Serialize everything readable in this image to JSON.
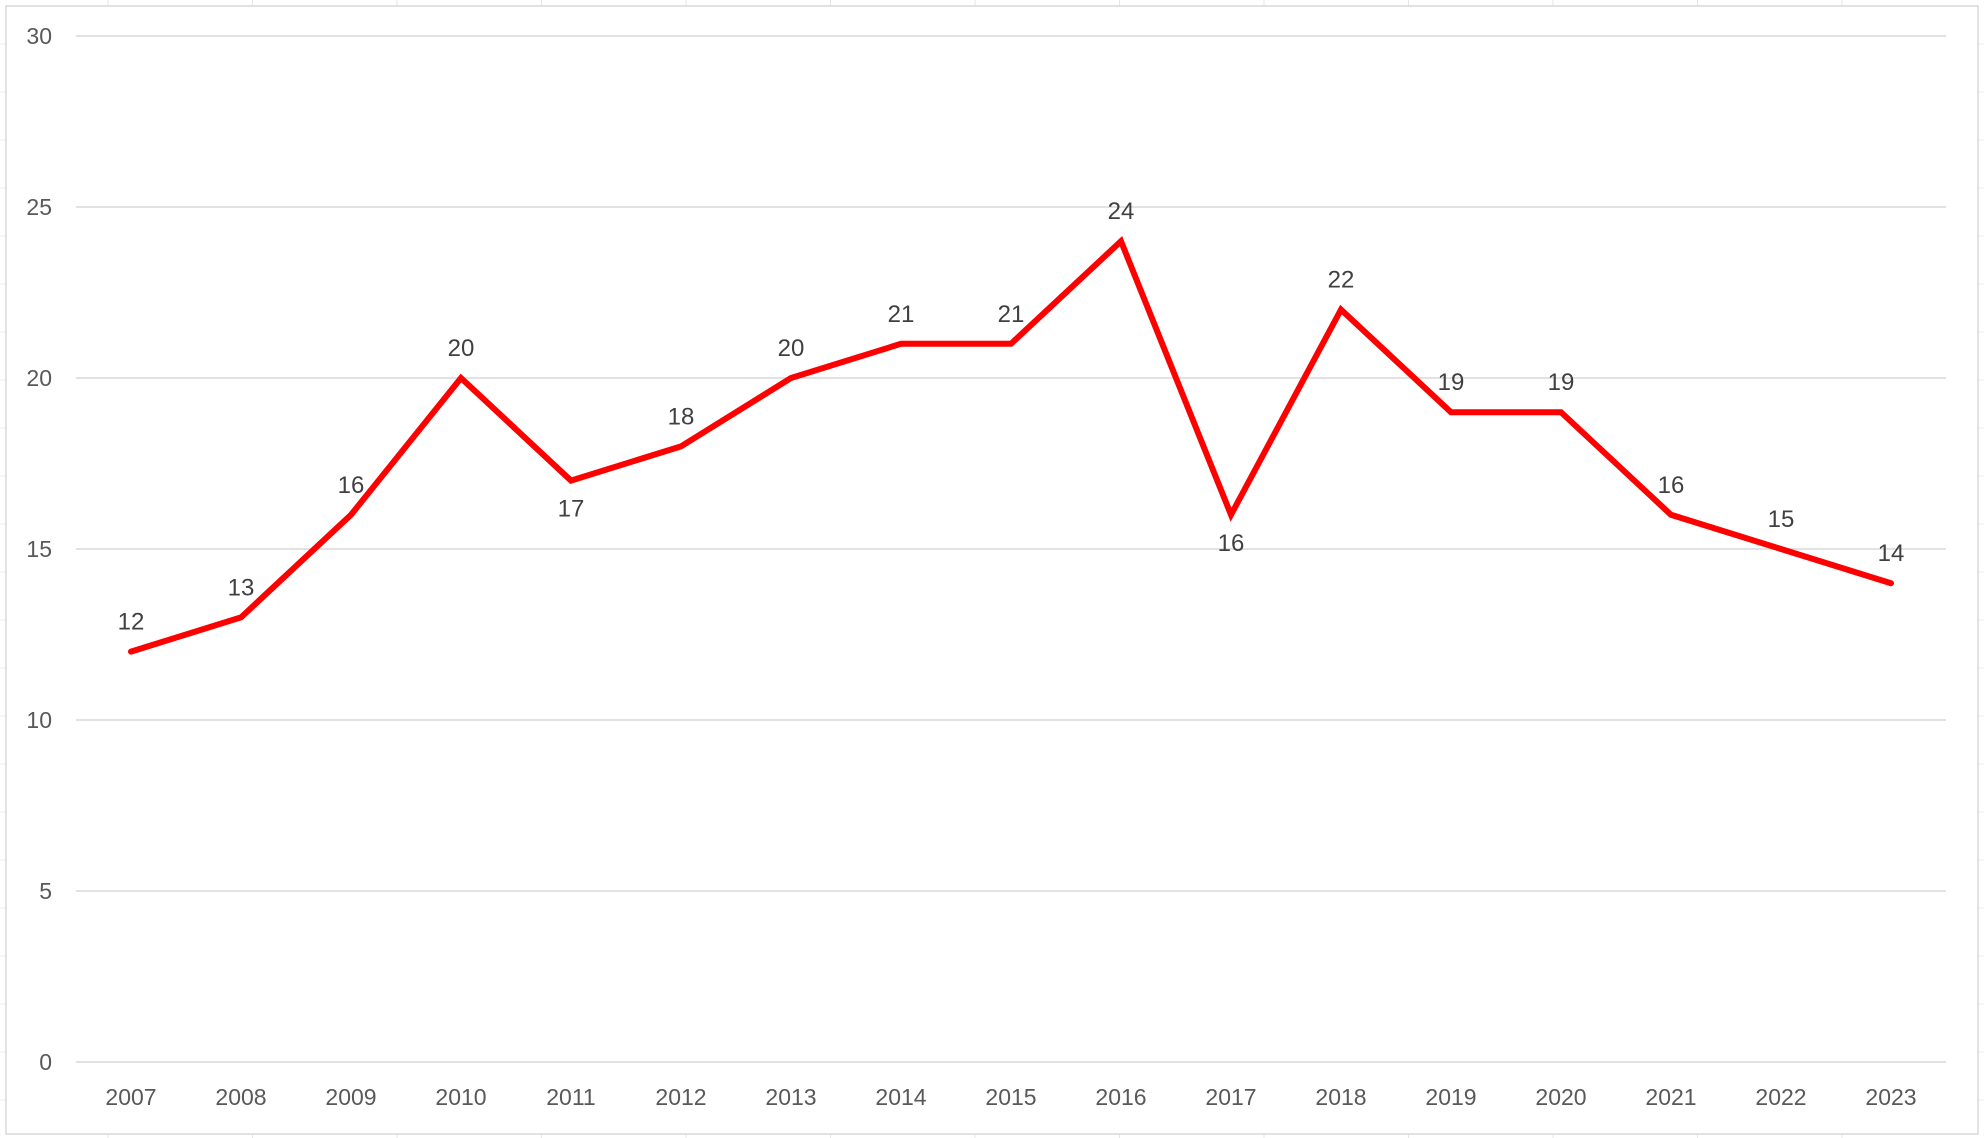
{
  "chart_data": {
    "type": "line",
    "title": "",
    "xlabel": "",
    "ylabel": "",
    "categories": [
      "2007",
      "2008",
      "2009",
      "2010",
      "2011",
      "2012",
      "2013",
      "2014",
      "2015",
      "2016",
      "2017",
      "2018",
      "2019",
      "2020",
      "2021",
      "2022",
      "2023"
    ],
    "series": [
      {
        "values": [
          12,
          13,
          16,
          20,
          17,
          18,
          20,
          21,
          21,
          24,
          16,
          22,
          19,
          19,
          16,
          15,
          14
        ],
        "color": "#ff0000"
      }
    ],
    "ylim": [
      0,
      30
    ],
    "yticks": [
      0,
      5,
      10,
      15,
      20,
      25,
      30
    ],
    "grid": true,
    "legend": "none",
    "data_labels": true,
    "gridline_color": "#d9d9d9",
    "axis_text_color": "#595959",
    "data_label_color": "#404040"
  }
}
